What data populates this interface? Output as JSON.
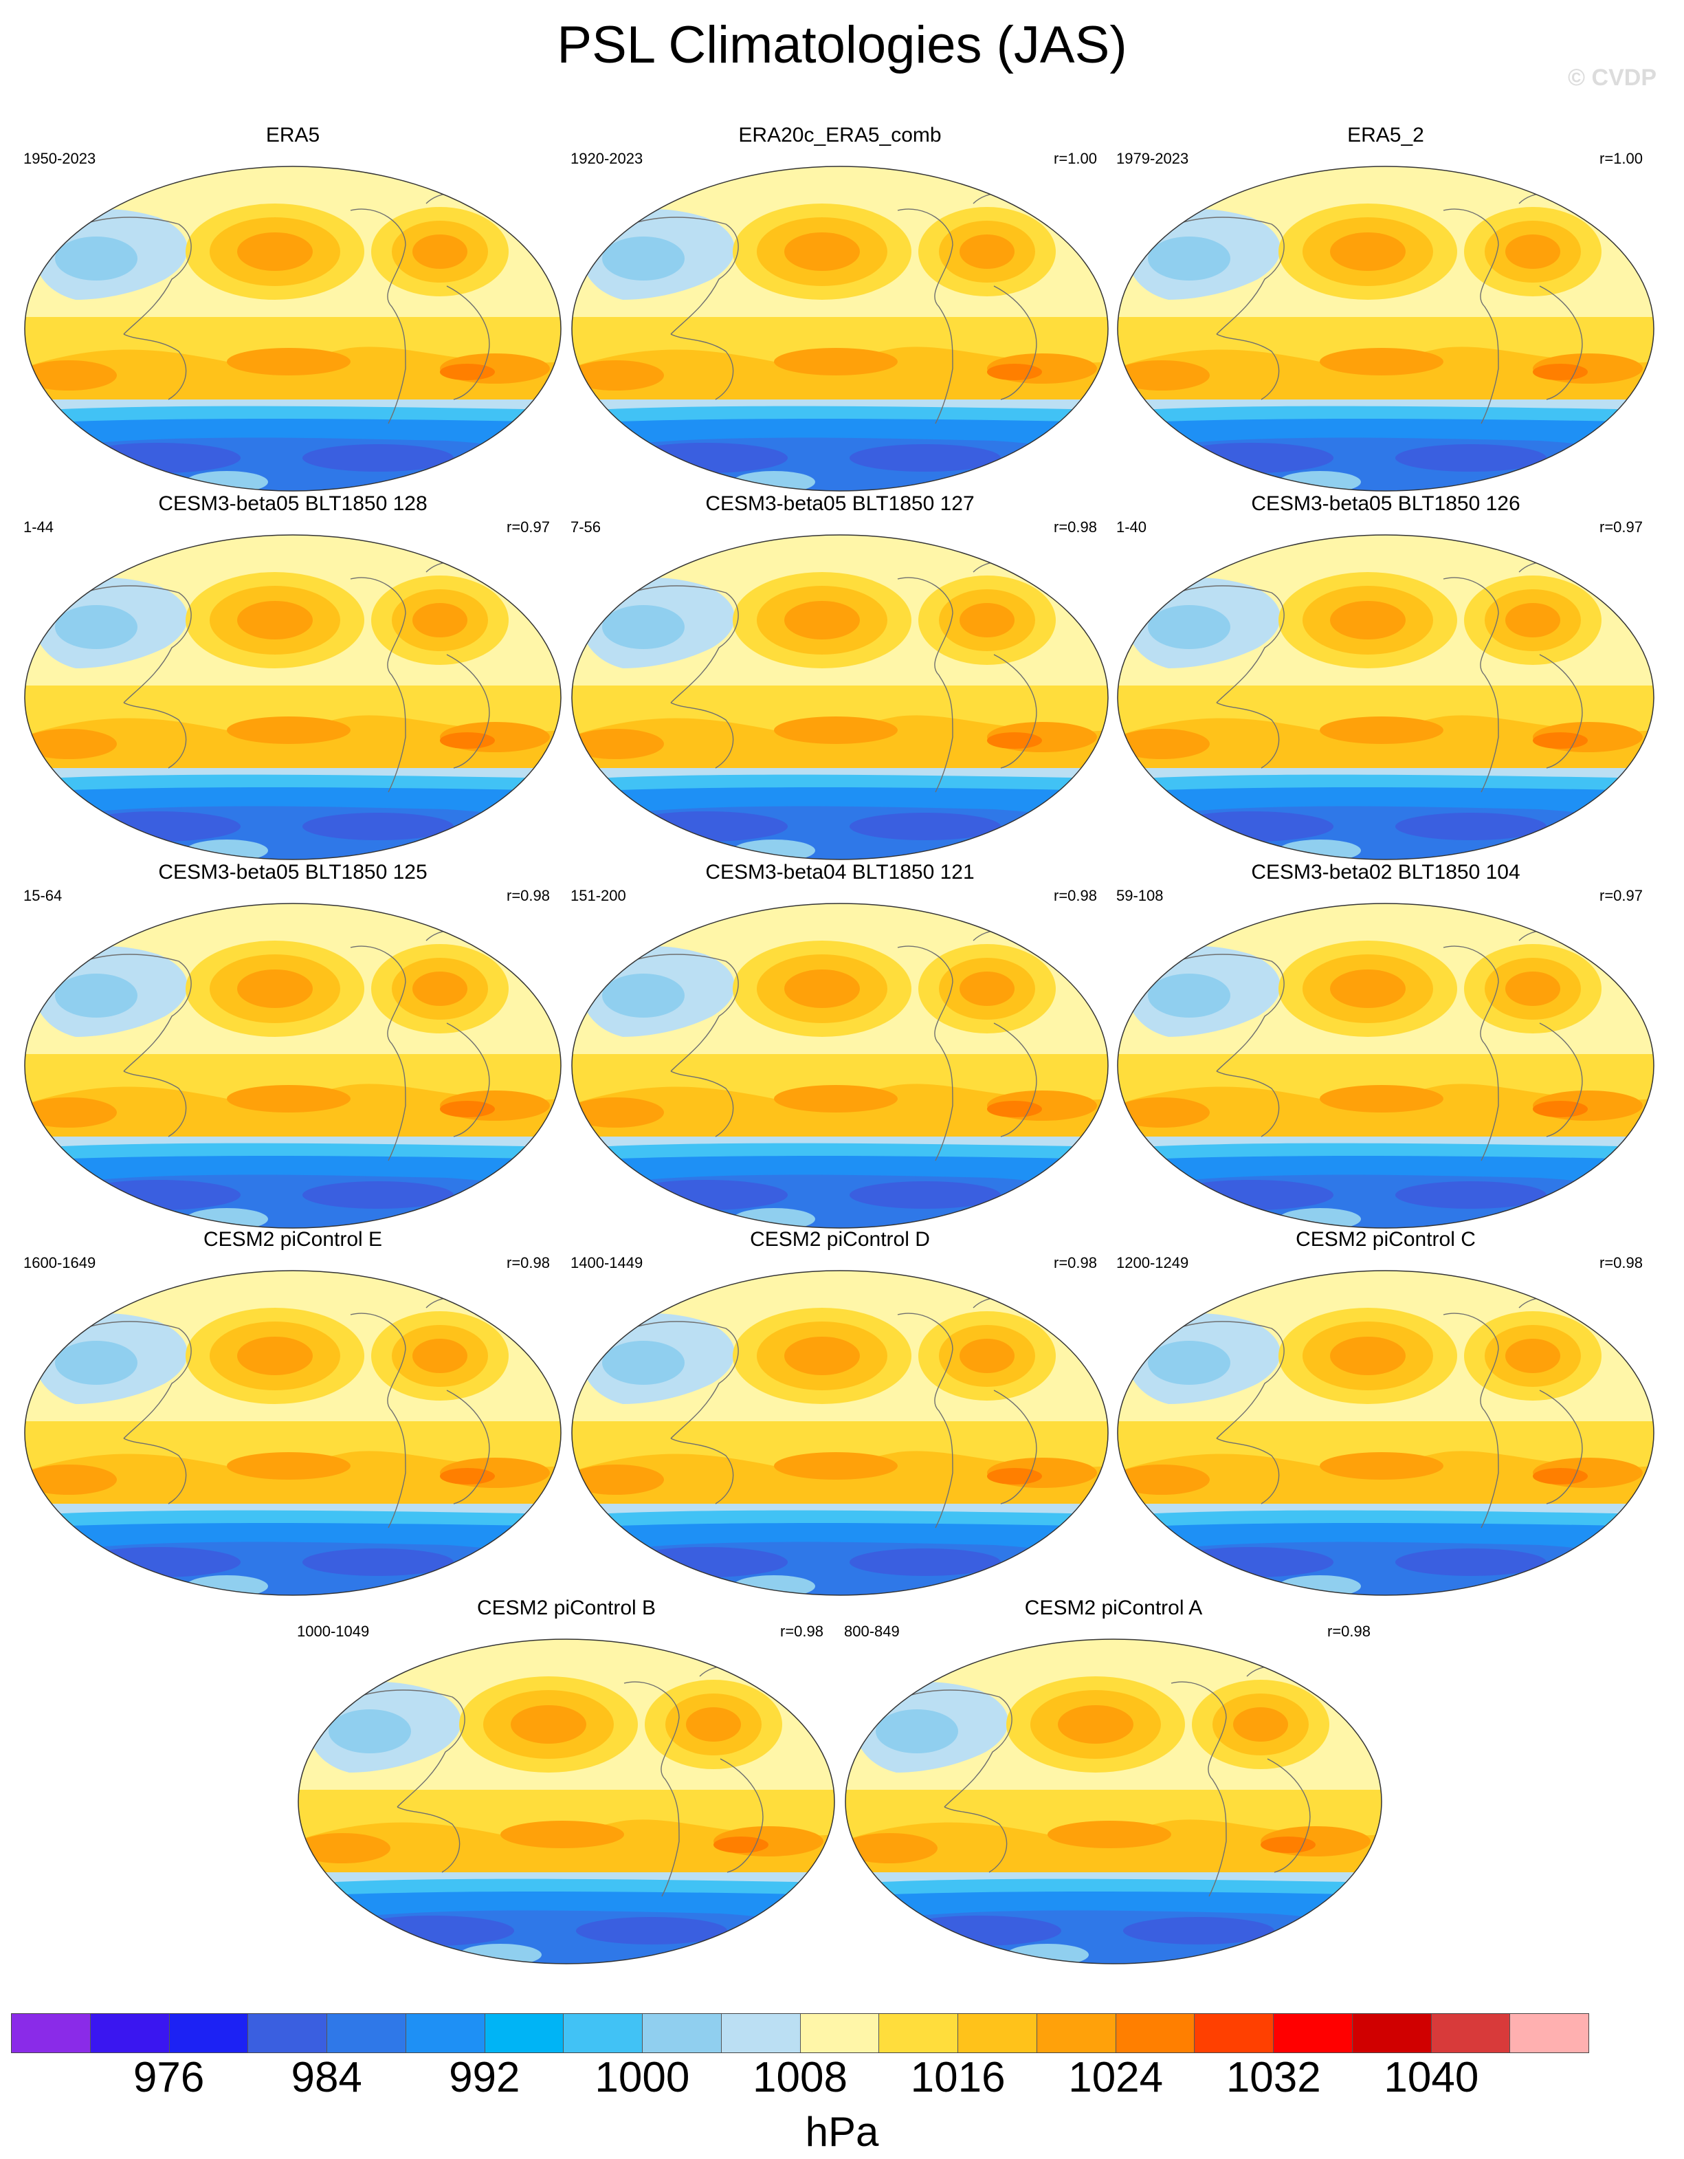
{
  "title": "PSL Climatologies (JAS)",
  "watermark": "© CVDP",
  "panels": [
    {
      "title": "ERA5",
      "years": "1950-2023",
      "r": ""
    },
    {
      "title": "ERA20c_ERA5_comb",
      "years": "1920-2023",
      "r": "r=1.00"
    },
    {
      "title": "ERA5_2",
      "years": "1979-2023",
      "r": "r=1.00"
    },
    {
      "title": "CESM3-beta05 BLT1850 128",
      "years": "1-44",
      "r": "r=0.97"
    },
    {
      "title": "CESM3-beta05 BLT1850 127",
      "years": "7-56",
      "r": "r=0.98"
    },
    {
      "title": "CESM3-beta05 BLT1850 126",
      "years": "1-40",
      "r": "r=0.97"
    },
    {
      "title": "CESM3-beta05 BLT1850 125",
      "years": "15-64",
      "r": "r=0.98"
    },
    {
      "title": "CESM3-beta04 BLT1850 121",
      "years": "151-200",
      "r": "r=0.98"
    },
    {
      "title": "CESM3-beta02 BLT1850 104",
      "years": "59-108",
      "r": "r=0.97"
    },
    {
      "title": "CESM2 piControl E",
      "years": "1600-1649",
      "r": "r=0.98"
    },
    {
      "title": "CESM2 piControl D",
      "years": "1400-1449",
      "r": "r=0.98"
    },
    {
      "title": "CESM2 piControl C",
      "years": "1200-1249",
      "r": "r=0.98"
    },
    {
      "title": "CESM2 piControl B",
      "years": "1000-1049",
      "r": "r=0.98"
    },
    {
      "title": "CESM2 piControl A",
      "years": "800-849",
      "r": "r=0.98"
    }
  ],
  "colorbar": {
    "units": "hPa",
    "colors": [
      "#8A2BE8",
      "#3A16F0",
      "#1C22F4",
      "#3A5FE0",
      "#2F78E8",
      "#1E90F5",
      "#00B4F5",
      "#41C2F5",
      "#90CFEF",
      "#BBDFF3",
      "#FFF6A8",
      "#FFDD3C",
      "#FFC21A",
      "#FFA10A",
      "#FF7F00",
      "#FF4000",
      "#FF0000",
      "#D00000",
      "#D83A3A",
      "#FFB0B0"
    ],
    "tick_labels": [
      "976",
      "984",
      "992",
      "1000",
      "1008",
      "1016",
      "1024",
      "1032",
      "1040"
    ]
  }
}
